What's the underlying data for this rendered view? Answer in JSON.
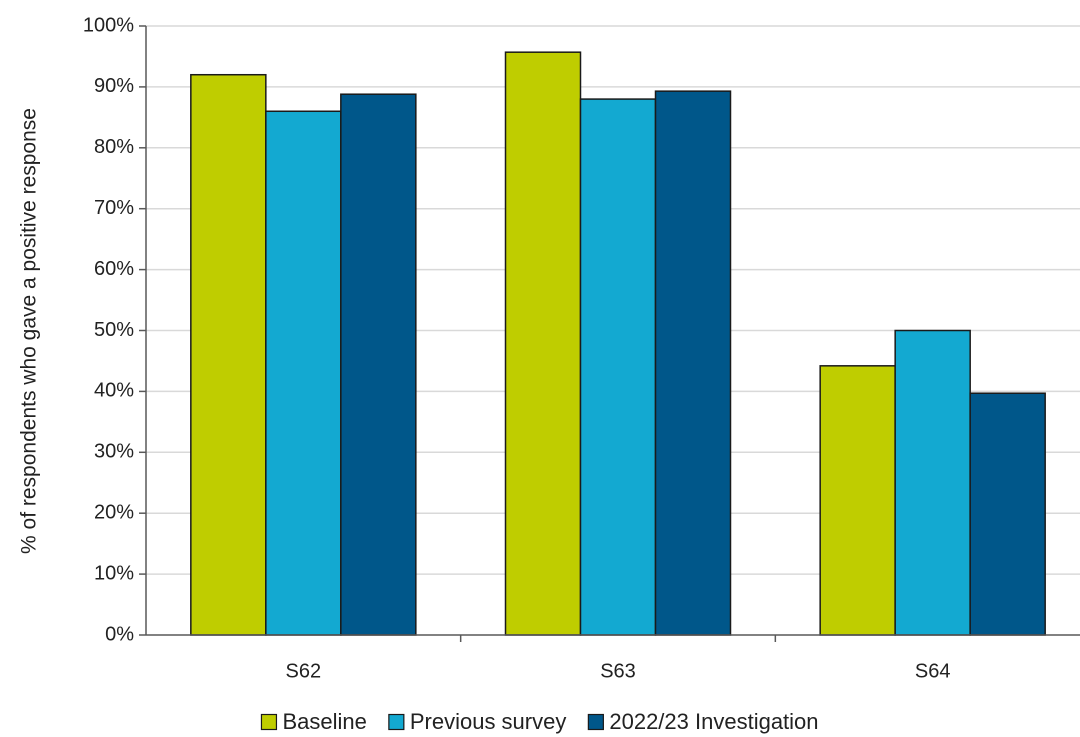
{
  "chart_data": {
    "type": "bar",
    "title": "",
    "xlabel": "",
    "ylabel": "% of respondents who gave a positive response",
    "categories": [
      "S62",
      "S63",
      "S64"
    ],
    "series": [
      {
        "name": "Baseline",
        "color": "#bfcd00",
        "values": [
          92,
          95.7,
          44.2
        ]
      },
      {
        "name": "Previous survey",
        "color": "#13a9d1",
        "values": [
          86,
          88,
          50
        ]
      },
      {
        "name": "2022/23 Investigation",
        "color": "#00578a",
        "values": [
          88.8,
          89.3,
          39.7
        ]
      }
    ],
    "ylim": [
      0,
      100
    ],
    "yticks": [
      0,
      10,
      20,
      30,
      40,
      50,
      60,
      70,
      80,
      90,
      100
    ],
    "ytick_labels": [
      "0%",
      "10%",
      "20%",
      "30%",
      "40%",
      "50%",
      "60%",
      "70%",
      "80%",
      "90%",
      "100%"
    ],
    "grid": true,
    "legend": "bottom"
  }
}
